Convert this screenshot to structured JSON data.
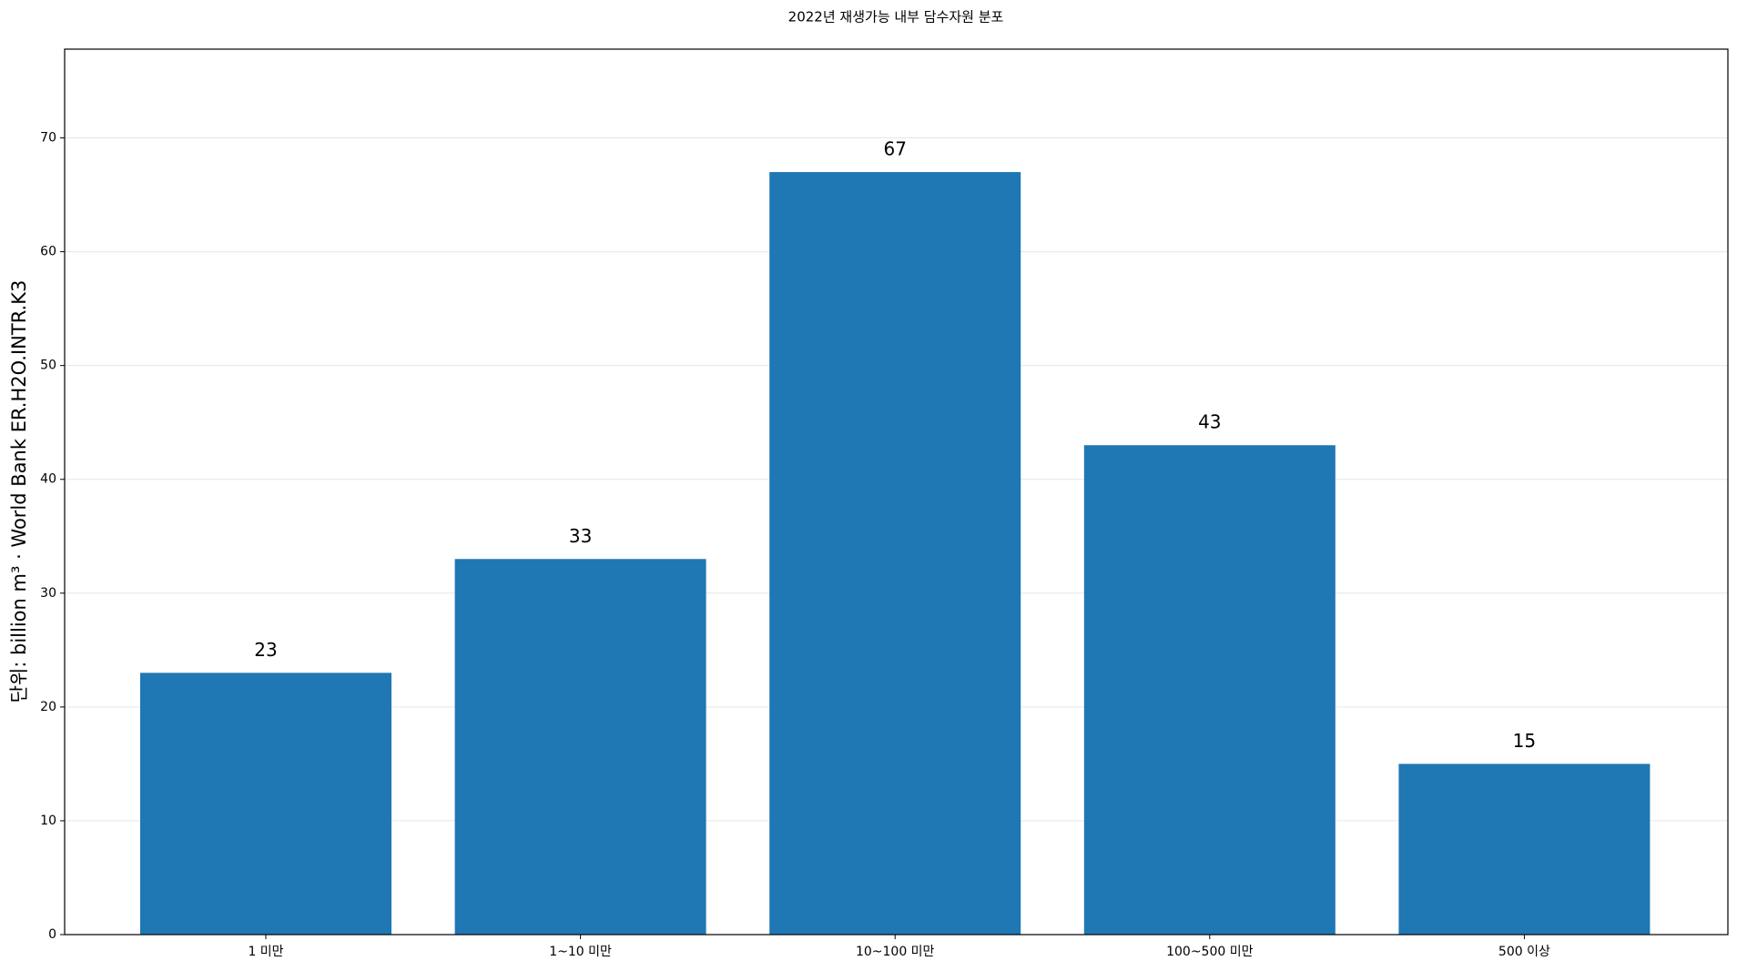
{
  "chart_data": {
    "type": "bar",
    "title": "2022년 재생가능 내부 담수자원 분포",
    "y_label": "단위: billion m³ · World Bank ER.H2O.INTR.K3",
    "categories": [
      "1 미만",
      "1~10 미만",
      "10~100 미만",
      "100~500 미만",
      "500 이상"
    ],
    "values": [
      23,
      33,
      67,
      43,
      15
    ],
    "color": "#1f77b4",
    "ylim": [
      0,
      77.8
    ],
    "yticks": [
      0,
      10,
      20,
      30,
      40,
      50,
      60,
      70
    ],
    "grid": true
  }
}
